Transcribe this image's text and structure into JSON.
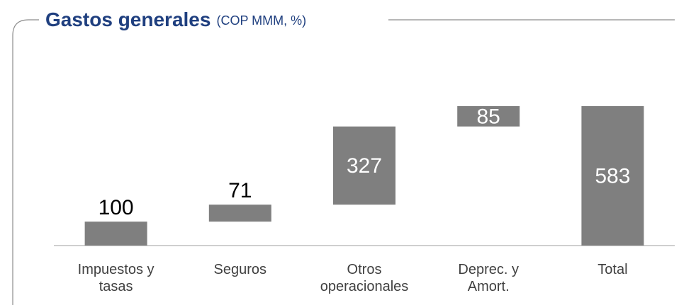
{
  "chart_data": {
    "type": "waterfall",
    "title": "Gastos generales",
    "subtitle": "(COP MMM, %)",
    "categories": [
      "Impuestos y tasas",
      "Seguros",
      "Otros operacionales",
      "Deprec. y Amort.",
      "Total"
    ],
    "values": [
      100,
      71,
      327,
      85,
      583
    ],
    "value_label_positions": [
      "above",
      "above",
      "inside",
      "inside",
      "inside"
    ],
    "color": "#7f7f7f"
  }
}
